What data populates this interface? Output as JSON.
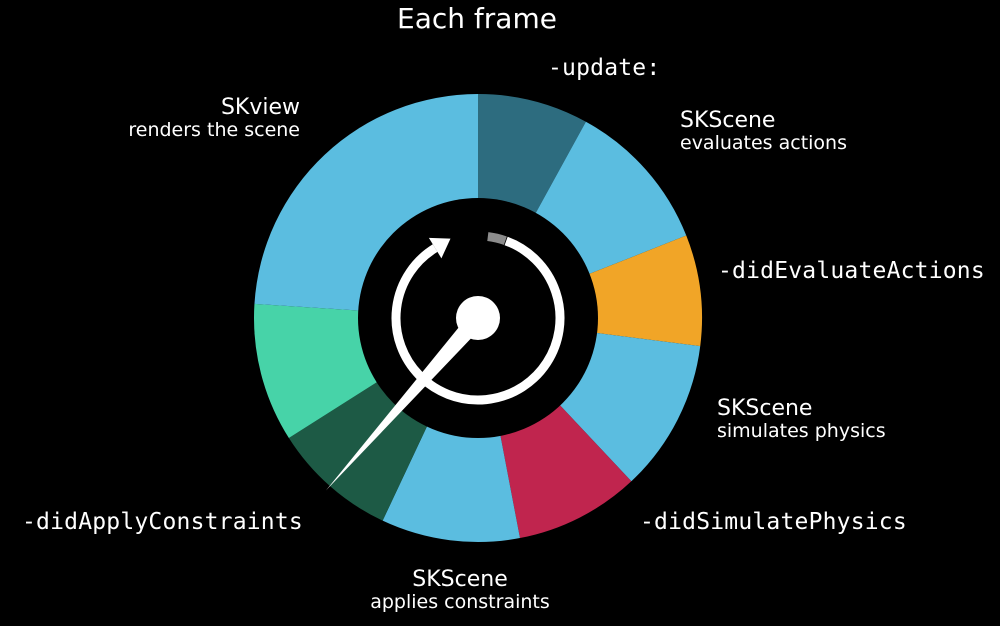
{
  "title": "Each frame",
  "colors": {
    "background": "#000000",
    "light_blue": "#5bbde0",
    "dark_teal": "#2d6c7f",
    "orange": "#f1a527",
    "crimson": "#c0254e",
    "mint": "#47d3a8",
    "dark_green": "#1d5a45",
    "white": "#ffffff"
  },
  "segments": [
    {
      "id": "update",
      "color": "#2d6c7f",
      "value": 8
    },
    {
      "id": "evaluate-actions",
      "color": "#5bbde0",
      "value": 11
    },
    {
      "id": "did-evaluate-actions",
      "color": "#f1a527",
      "value": 8
    },
    {
      "id": "simulate-physics",
      "color": "#5bbde0",
      "value": 11
    },
    {
      "id": "did-simulate-physics",
      "color": "#c0254e",
      "value": 9
    },
    {
      "id": "apply-constraints",
      "color": "#5bbde0",
      "value": 10
    },
    {
      "id": "did-apply-constraints",
      "color": "#1d5a45",
      "value": 9
    },
    {
      "id": "pre-render",
      "color": "#47d3a8",
      "value": 10
    },
    {
      "id": "render",
      "color": "#5bbde0",
      "value": 24
    }
  ],
  "labels": {
    "update": "-update:",
    "scene_evaluates_title": "SKScene",
    "scene_evaluates_sub": "evaluates actions",
    "did_evaluate_actions": "-didEvaluateActions",
    "scene_simulates_title": "SKScene",
    "scene_simulates_sub": "simulates physics",
    "did_simulate_physics": "-didSimulatePhysics",
    "scene_applies_title": "SKScene",
    "scene_applies_sub": "applies constraints",
    "did_apply_constraints": "-didApplyConstraints",
    "view_title": "SKview",
    "view_sub": "renders the scene"
  },
  "pointer": {
    "segment": "did-apply-constraints"
  }
}
